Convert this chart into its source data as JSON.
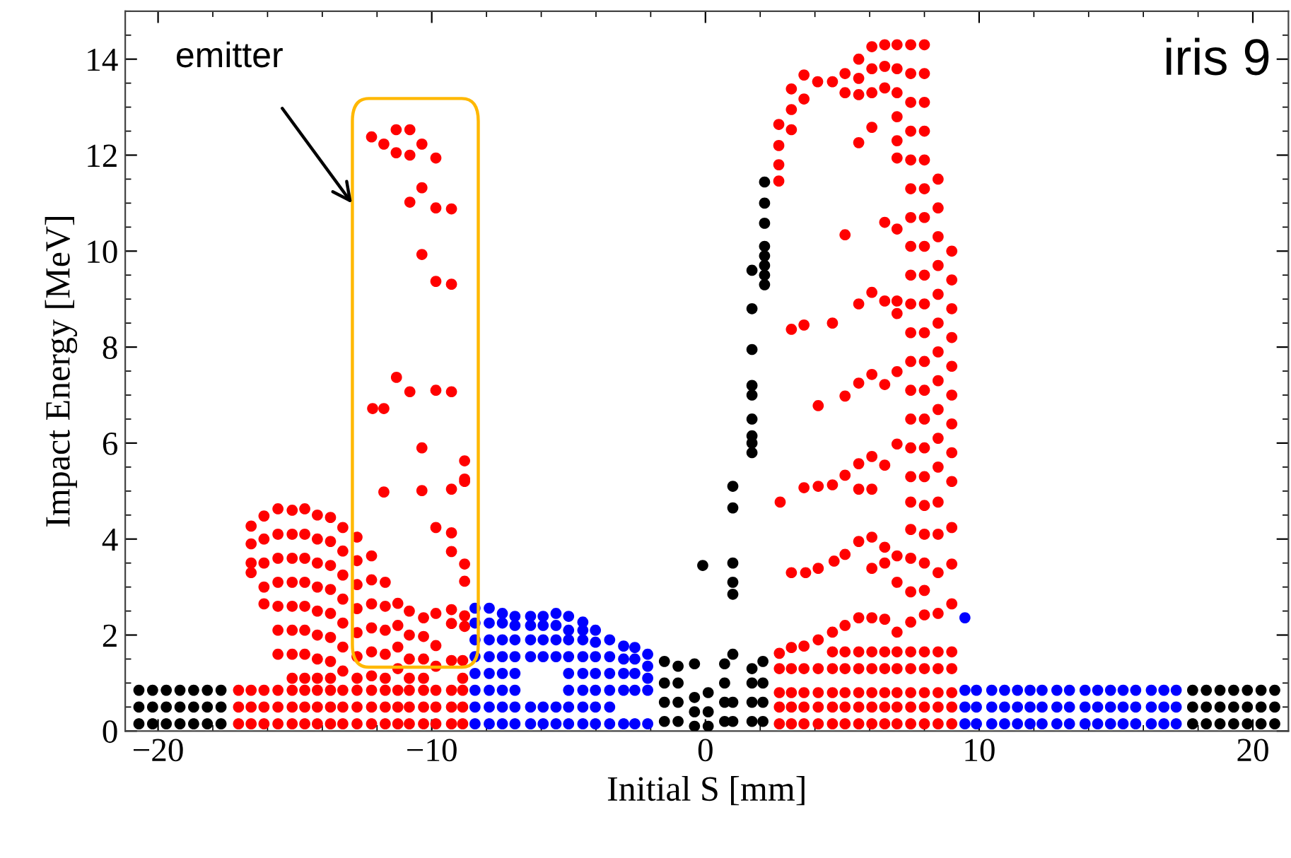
{
  "chart_data": {
    "type": "scatter",
    "xlabel": "Initial S [mm]",
    "ylabel": "Impact Energy [MeV]",
    "xlim": [
      -21.2,
      21.3
    ],
    "ylim": [
      0,
      15
    ],
    "xticks": [
      {
        "value": -20,
        "label": "−20"
      },
      {
        "value": -10,
        "label": "−10"
      },
      0,
      10,
      20
    ],
    "yticks": [
      0,
      2,
      4,
      6,
      8,
      10,
      12,
      14
    ],
    "grid": false,
    "marker": "circle",
    "annotations": [
      "emitter",
      "iris 9"
    ],
    "series": [
      {
        "color": "#ff0000",
        "x": [
          -17.06,
          -17.06,
          -17.06,
          -16.6,
          -16.6,
          -16.6,
          -16.13,
          -16.13,
          -16.13,
          -15.62,
          -15.62,
          -15.62,
          -15.1,
          -15.1,
          -15.1,
          -14.64,
          -14.64,
          -14.64,
          -14.18,
          -14.18,
          -14.18,
          -13.7,
          -13.7,
          -13.7,
          -13.25,
          -13.25,
          -13.25,
          -12.73,
          -12.73,
          -12.73,
          -12.2,
          -12.2,
          -12.2,
          -11.7,
          -11.7,
          -11.7,
          -11.24,
          -11.24,
          -11.24,
          -10.82,
          -10.82,
          -10.82,
          -10.3,
          -10.3,
          -10.3,
          -9.85,
          -9.85,
          -9.85,
          -9.28,
          -9.28,
          -9.28,
          -8.87,
          -8.87,
          -8.87,
          -16.6,
          -16.6,
          -16.6,
          -16.6,
          -16.13,
          -16.13,
          -16.13,
          -16.13,
          -16.13,
          -15.62,
          -15.62,
          -15.62,
          -15.62,
          -15.62,
          -15.62,
          -15.62,
          -15.1,
          -15.1,
          -15.1,
          -15.1,
          -15.1,
          -15.1,
          -15.1,
          -15.1,
          -14.64,
          -14.64,
          -14.64,
          -14.64,
          -14.64,
          -14.64,
          -14.64,
          -14.64,
          -14.18,
          -14.18,
          -14.18,
          -14.18,
          -14.18,
          -14.18,
          -14.18,
          -14.18,
          -13.7,
          -13.7,
          -13.7,
          -13.7,
          -13.7,
          -13.7,
          -13.7,
          -13.7,
          -13.25,
          -13.25,
          -13.25,
          -13.25,
          -13.25,
          -13.25,
          -13.25,
          -12.73,
          -12.73,
          -12.73,
          -12.73,
          -12.73,
          -12.73,
          -12.73,
          -12.2,
          -12.2,
          -12.2,
          -12.2,
          -12.2,
          -12.2,
          -11.7,
          -11.7,
          -11.7,
          -11.7,
          -11.7,
          -11.24,
          -11.24,
          -11.24,
          -11.24,
          -10.82,
          -10.82,
          -10.82,
          -10.82,
          -10.3,
          -10.3,
          -10.3,
          -9.85,
          -9.85,
          -9.28,
          -8.87,
          -8.87,
          -12.2,
          -11.3,
          -10.8,
          -11.75,
          -11.3,
          -10.8,
          -10.36,
          -9.85,
          -10.36,
          -10.8,
          -9.85,
          -9.28,
          -10.36,
          -9.85,
          -9.28,
          -11.29,
          -10.8,
          -9.85,
          -9.28,
          -12.16,
          -11.75,
          -10.36,
          -8.8,
          -8.8,
          -11.75,
          -10.36,
          -9.28,
          -8.8,
          -9.85,
          -9.28,
          -9.28,
          -8.8,
          -8.8,
          -10.3,
          -9.85,
          -9.28,
          -9.28,
          -8.8,
          -8.8,
          2.7,
          2.7,
          2.7,
          3.14,
          3.14,
          3.14,
          3.6,
          3.6,
          3.6,
          4.12,
          4.12,
          4.12,
          4.64,
          4.64,
          4.64,
          5.1,
          5.1,
          5.1,
          5.6,
          5.6,
          5.6,
          6.08,
          6.08,
          6.08,
          6.55,
          6.55,
          6.55,
          7.0,
          7.0,
          7.0,
          7.5,
          7.5,
          7.5,
          8.0,
          8.0,
          8.0,
          8.5,
          8.5,
          8.5,
          9.0,
          9.0,
          9.0,
          2.7,
          2.7,
          3.14,
          3.14,
          3.6,
          3.6,
          4.12,
          4.12,
          4.64,
          4.64,
          4.64,
          5.1,
          5.1,
          5.1,
          5.6,
          5.6,
          5.6,
          6.08,
          6.08,
          6.08,
          6.55,
          6.55,
          6.55,
          7.0,
          7.0,
          7.0,
          7.5,
          7.5,
          7.5,
          8.0,
          8.0,
          8.0,
          8.5,
          8.5,
          8.5,
          9.0,
          9.0,
          9.0,
          2.68,
          2.68,
          2.68,
          2.68,
          3.14,
          3.14,
          3.14,
          3.6,
          3.6,
          4.1,
          4.64,
          5.1,
          5.1,
          5.6,
          5.6,
          5.6,
          6.08,
          6.08,
          6.08,
          6.55,
          6.55,
          6.55,
          7.0,
          7.0,
          7.0,
          7.0,
          7.0,
          7.0,
          7.5,
          7.5,
          7.5,
          7.5,
          7.5,
          7.5,
          7.5,
          7.5,
          7.5,
          7.5,
          7.5,
          7.5,
          7.5,
          7.5,
          7.5,
          7.5,
          7.5,
          7.5,
          7.5,
          7.5,
          8.0,
          8.0,
          8.0,
          8.0,
          8.0,
          8.0,
          8.0,
          8.0,
          8.0,
          8.0,
          8.0,
          8.0,
          8.0,
          8.0,
          8.0,
          8.0,
          8.0,
          8.0,
          8.0,
          8.0,
          8.5,
          8.5,
          8.5,
          8.5,
          8.5,
          8.5,
          8.5,
          8.5,
          8.5,
          8.5,
          8.5,
          8.5,
          8.5,
          8.5,
          9.0,
          9.0,
          9.0,
          9.0,
          9.0,
          9.0,
          9.0,
          9.0,
          9.0,
          9.0,
          9.0,
          6.08,
          5.6,
          6.55,
          7.0,
          5.1,
          5.6,
          6.08,
          6.55,
          7.0,
          7.0,
          3.14,
          3.6,
          4.64,
          4.12,
          5.1,
          5.6,
          6.08,
          6.55,
          7.0,
          7.0,
          5.6,
          6.08,
          6.55,
          5.1,
          4.64,
          4.12,
          3.6,
          5.6,
          6.08,
          2.73,
          3.14,
          3.66,
          4.12,
          4.7,
          5.1,
          5.6,
          6.08,
          6.55,
          7.0,
          6.55,
          6.08,
          7.0
        ],
        "values": [
          0.15,
          0.5,
          0.85,
          0.15,
          0.5,
          0.85,
          0.15,
          0.5,
          0.85,
          0.15,
          0.5,
          0.85,
          0.15,
          0.5,
          0.85,
          0.15,
          0.5,
          0.85,
          0.15,
          0.5,
          0.85,
          0.15,
          0.5,
          0.85,
          0.15,
          0.5,
          0.85,
          0.15,
          0.5,
          0.85,
          0.15,
          0.5,
          0.85,
          0.15,
          0.5,
          0.85,
          0.15,
          0.5,
          0.85,
          0.15,
          0.5,
          0.85,
          0.15,
          0.5,
          0.85,
          0.15,
          0.5,
          0.85,
          0.15,
          0.5,
          0.85,
          0.15,
          0.5,
          0.85,
          4.27,
          3.9,
          3.5,
          3.3,
          4.48,
          4.0,
          3.5,
          3.0,
          2.65,
          4.63,
          4.1,
          3.6,
          3.1,
          2.6,
          2.1,
          1.6,
          4.6,
          4.1,
          3.6,
          3.1,
          2.6,
          2.1,
          1.6,
          1.1,
          4.63,
          4.1,
          3.6,
          3.1,
          2.6,
          2.1,
          1.6,
          1.1,
          4.5,
          4.0,
          3.5,
          3.0,
          2.5,
          2.0,
          1.5,
          1.1,
          4.45,
          3.95,
          3.45,
          2.95,
          2.45,
          1.95,
          1.45,
          1.1,
          4.24,
          3.75,
          3.25,
          2.75,
          2.25,
          1.75,
          1.25,
          4.04,
          3.55,
          3.05,
          2.55,
          2.05,
          1.55,
          1.1,
          3.65,
          3.15,
          2.65,
          2.15,
          1.65,
          1.15,
          3.1,
          2.6,
          2.1,
          1.6,
          1.1,
          2.66,
          2.2,
          1.75,
          1.3,
          2.5,
          2.0,
          1.5,
          1.1,
          1.97,
          1.5,
          1.1,
          1.78,
          1.35,
          1.47,
          1.47,
          1.1,
          12.38,
          12.53,
          12.53,
          12.23,
          12.05,
          12.0,
          12.23,
          11.94,
          11.32,
          11.02,
          10.9,
          10.88,
          9.93,
          9.37,
          9.31,
          7.37,
          7.07,
          7.1,
          7.07,
          6.72,
          6.72,
          5.9,
          5.63,
          5.25,
          4.98,
          5.01,
          5.04,
          5.2,
          4.24,
          4.13,
          3.74,
          3.48,
          3.12,
          2.36,
          2.45,
          2.53,
          2.24,
          2.4,
          2.18,
          0.15,
          0.5,
          0.8,
          0.15,
          0.5,
          0.8,
          0.15,
          0.5,
          0.8,
          0.15,
          0.5,
          0.8,
          0.15,
          0.5,
          0.8,
          0.15,
          0.5,
          0.8,
          0.15,
          0.5,
          0.8,
          0.15,
          0.5,
          0.8,
          0.15,
          0.5,
          0.8,
          0.15,
          0.5,
          0.8,
          0.15,
          0.5,
          0.8,
          0.15,
          0.5,
          0.8,
          0.15,
          0.5,
          0.8,
          0.15,
          0.5,
          0.8,
          1.3,
          1.62,
          1.3,
          1.74,
          1.3,
          1.77,
          1.3,
          1.9,
          1.3,
          1.65,
          2.06,
          1.3,
          1.65,
          2.2,
          1.3,
          1.65,
          2.36,
          1.3,
          1.65,
          2.36,
          1.3,
          1.65,
          2.33,
          1.3,
          1.65,
          2.06,
          1.3,
          1.65,
          2.27,
          1.3,
          1.65,
          2.42,
          1.3,
          1.65,
          2.45,
          1.3,
          1.65,
          2.65,
          12.64,
          12.2,
          11.8,
          11.46,
          13.38,
          12.95,
          12.53,
          13.67,
          13.17,
          13.53,
          13.53,
          13.7,
          13.3,
          14.0,
          13.6,
          13.26,
          14.26,
          13.8,
          13.3,
          14.3,
          13.85,
          13.4,
          14.3,
          13.8,
          13.3,
          12.8,
          12.3,
          11.94,
          14.3,
          13.7,
          13.1,
          12.5,
          11.9,
          11.3,
          10.7,
          10.1,
          9.5,
          8.9,
          8.3,
          7.7,
          7.1,
          6.5,
          5.9,
          5.3,
          4.77,
          4.2,
          3.6,
          2.9,
          14.3,
          13.7,
          13.1,
          12.5,
          11.9,
          11.3,
          10.7,
          10.1,
          9.5,
          8.9,
          8.3,
          7.7,
          7.1,
          6.5,
          5.9,
          5.3,
          4.7,
          4.1,
          3.5,
          2.93,
          11.5,
          10.9,
          10.3,
          9.7,
          9.1,
          8.5,
          7.9,
          7.3,
          6.7,
          6.1,
          5.5,
          4.77,
          4.1,
          3.3,
          10.0,
          9.4,
          8.8,
          8.2,
          7.6,
          7.0,
          6.4,
          5.8,
          5.2,
          4.24,
          3.48,
          12.58,
          12.26,
          10.6,
          10.46,
          10.34,
          8.9,
          9.14,
          8.96,
          8.96,
          8.7,
          8.37,
          8.46,
          8.5,
          6.78,
          6.98,
          7.25,
          7.43,
          7.22,
          7.49,
          5.98,
          5.57,
          5.72,
          5.54,
          5.33,
          5.13,
          5.1,
          5.07,
          5.04,
          5.04,
          4.77,
          3.3,
          3.3,
          3.39,
          3.54,
          3.68,
          3.95,
          4.04,
          3.83,
          3.65,
          3.5,
          3.39,
          3.1
        ]
      },
      {
        "color": "#0000ff",
        "x": [
          -8.42,
          -8.42,
          -8.42,
          -8.42,
          -8.42,
          -8.42,
          -8.42,
          -8.42,
          -7.9,
          -7.9,
          -7.9,
          -7.9,
          -7.9,
          -7.9,
          -7.9,
          -7.9,
          -7.42,
          -7.42,
          -7.42,
          -7.42,
          -7.42,
          -7.42,
          -7.42,
          -7.42,
          -6.96,
          -6.96,
          -6.96,
          -6.96,
          -6.96,
          -6.96,
          -6.96,
          -6.96,
          -6.39,
          -6.39,
          -6.39,
          -6.39,
          -6.39,
          -6.39,
          -5.93,
          -5.93,
          -5.93,
          -5.93,
          -5.93,
          -5.93,
          -5.46,
          -5.46,
          -5.46,
          -5.46,
          -5.46,
          -5.46,
          -5.0,
          -5.0,
          -5.0,
          -5.0,
          -5.0,
          -5.0,
          -5.0,
          -5.0,
          -4.48,
          -4.48,
          -4.48,
          -4.48,
          -4.48,
          -4.48,
          -4.48,
          -4.48,
          -4.02,
          -4.02,
          -4.02,
          -4.02,
          -4.02,
          -4.02,
          -4.02,
          -3.5,
          -3.5,
          -3.5,
          -3.5,
          -3.5,
          -3.5,
          -2.99,
          -2.99,
          -2.99,
          -2.99,
          -2.99,
          -2.58,
          -2.58,
          -2.58,
          -2.58,
          -2.58,
          -2.11,
          -2.11,
          -2.11,
          -2.11,
          -2.11,
          9.48,
          9.48,
          9.48,
          9.9,
          9.9,
          9.9,
          10.46,
          10.46,
          10.46,
          10.93,
          10.93,
          10.93,
          11.4,
          11.4,
          11.4,
          11.86,
          11.86,
          11.86,
          12.3,
          12.3,
          12.3,
          12.84,
          12.84,
          12.84,
          13.3,
          13.3,
          13.3,
          13.87,
          13.87,
          13.87,
          14.33,
          14.33,
          14.33,
          14.8,
          14.8,
          14.8,
          15.26,
          15.26,
          15.26,
          15.72,
          15.72,
          15.72,
          16.29,
          16.29,
          16.29,
          16.75,
          16.75,
          16.75,
          17.2,
          17.2,
          17.2,
          9.48
        ],
        "values": [
          0.15,
          0.5,
          0.85,
          1.2,
          1.55,
          1.9,
          2.25,
          2.56,
          0.15,
          0.5,
          0.85,
          1.2,
          1.55,
          1.9,
          2.25,
          2.56,
          0.15,
          0.5,
          0.85,
          1.2,
          1.55,
          1.9,
          2.25,
          2.45,
          0.15,
          0.5,
          0.85,
          1.2,
          1.55,
          1.9,
          2.2,
          2.39,
          0.15,
          0.5,
          1.55,
          1.9,
          2.2,
          2.39,
          0.15,
          0.5,
          1.55,
          1.9,
          2.2,
          2.39,
          0.15,
          0.5,
          1.55,
          1.9,
          2.2,
          2.45,
          0.15,
          0.5,
          0.85,
          1.2,
          1.55,
          1.9,
          2.1,
          2.39,
          0.15,
          0.5,
          0.85,
          1.2,
          1.55,
          1.9,
          2.1,
          2.27,
          0.15,
          0.5,
          0.85,
          1.2,
          1.55,
          1.85,
          2.1,
          0.15,
          0.5,
          0.85,
          1.2,
          1.55,
          1.9,
          0.15,
          0.85,
          1.2,
          1.5,
          1.77,
          0.15,
          0.85,
          1.2,
          1.5,
          1.74,
          0.15,
          0.85,
          1.1,
          1.35,
          1.6,
          0.15,
          0.5,
          0.85,
          0.15,
          0.5,
          0.85,
          0.15,
          0.5,
          0.85,
          0.15,
          0.5,
          0.85,
          0.15,
          0.5,
          0.85,
          0.15,
          0.5,
          0.85,
          0.15,
          0.5,
          0.85,
          0.15,
          0.5,
          0.85,
          0.15,
          0.5,
          0.85,
          0.15,
          0.5,
          0.85,
          0.15,
          0.5,
          0.85,
          0.15,
          0.5,
          0.85,
          0.15,
          0.5,
          0.85,
          0.15,
          0.5,
          0.85,
          0.15,
          0.5,
          0.85,
          0.15,
          0.5,
          0.85,
          0.15,
          0.5,
          0.85,
          2.36
        ]
      },
      {
        "color": "#000000",
        "x": [
          -20.7,
          -20.7,
          -20.7,
          -20.2,
          -20.2,
          -20.2,
          -19.7,
          -19.7,
          -19.7,
          -19.2,
          -19.2,
          -19.2,
          -18.7,
          -18.7,
          -18.7,
          -18.2,
          -18.2,
          -18.2,
          -17.7,
          -17.7,
          -17.7,
          -1.5,
          -1.5,
          -1.5,
          -1.5,
          -1.0,
          -1.0,
          -1.0,
          -1.0,
          -0.4,
          -0.4,
          -0.4,
          -0.4,
          -0.1,
          0.1,
          0.1,
          0.1,
          0.7,
          0.7,
          0.7,
          0.7,
          1.0,
          1.0,
          1.0,
          1.0,
          1.0,
          1.0,
          1.0,
          1.0,
          1.7,
          1.7,
          1.7,
          1.7,
          2.1,
          2.1,
          2.1,
          2.1,
          2.16,
          2.16,
          2.16,
          2.16,
          2.16,
          2.16,
          2.16,
          2.16,
          1.7,
          1.7,
          1.7,
          1.7,
          1.7,
          1.7,
          1.7,
          1.7,
          1.7,
          17.8,
          17.8,
          17.8,
          18.3,
          18.3,
          18.3,
          18.8,
          18.8,
          18.8,
          19.3,
          19.3,
          19.3,
          19.8,
          19.8,
          19.8,
          20.3,
          20.3,
          20.3,
          20.8,
          20.8,
          20.8
        ],
        "values": [
          0.15,
          0.5,
          0.85,
          0.15,
          0.5,
          0.85,
          0.15,
          0.5,
          0.85,
          0.15,
          0.5,
          0.85,
          0.15,
          0.5,
          0.85,
          0.15,
          0.5,
          0.85,
          0.15,
          0.5,
          0.85,
          0.2,
          0.6,
          1.0,
          1.45,
          0.2,
          0.6,
          1.0,
          1.35,
          0.1,
          0.4,
          0.7,
          1.4,
          3.45,
          0.1,
          0.4,
          0.8,
          0.2,
          0.6,
          1.0,
          1.4,
          0.2,
          0.6,
          1.6,
          2.85,
          3.1,
          3.5,
          4.65,
          5.1,
          0.2,
          0.6,
          1.0,
          1.3,
          0.2,
          0.6,
          1.0,
          1.45,
          9.3,
          9.5,
          9.7,
          9.9,
          10.1,
          10.58,
          11.0,
          11.44,
          5.8,
          6.0,
          6.15,
          6.5,
          7.0,
          7.2,
          7.95,
          8.8,
          9.6,
          0.15,
          0.5,
          0.85,
          0.15,
          0.5,
          0.85,
          0.15,
          0.5,
          0.85,
          0.15,
          0.5,
          0.85,
          0.15,
          0.5,
          0.85,
          0.15,
          0.5,
          0.85,
          0.15,
          0.5,
          0.85
        ]
      }
    ]
  }
}
